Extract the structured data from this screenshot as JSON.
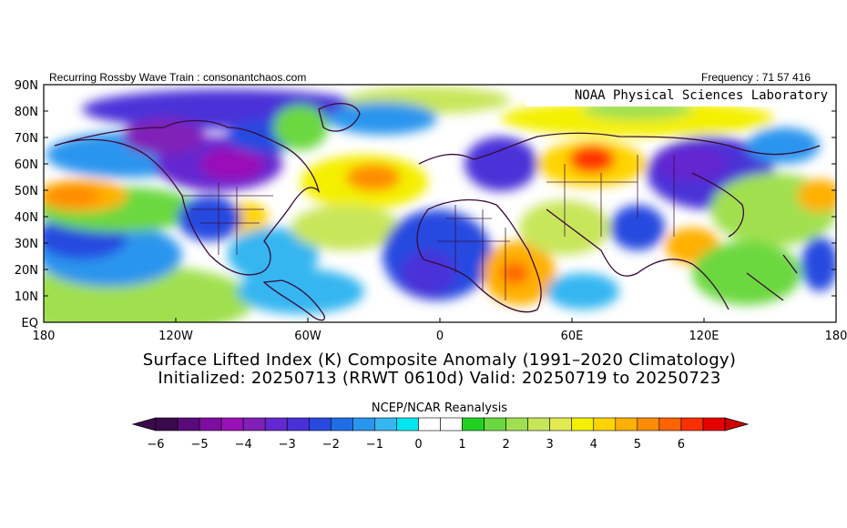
{
  "header": {
    "left_text": "Recurring Rossby Wave Train : consonantchaos.com",
    "right_text": "Frequency : 71 57 416"
  },
  "credit": "NOAA Physical Sciences Laboratory",
  "title_line1": "Surface Lifted Index (K) Composite Anomaly (1991–2020 Climatology)",
  "title_line2": "Initialized: 20250713 (RRWT 0610d) Valid: 20250719 to 20250723",
  "colorbar": {
    "title": "NCEP/NCAR Reanalysis",
    "labels": [
      "−6",
      "−5",
      "−4",
      "−3",
      "−2",
      "−1",
      "0",
      "1",
      "2",
      "3",
      "4",
      "5",
      "6"
    ],
    "colors": [
      "#3a0a4a",
      "#5a0a7a",
      "#7d0d9e",
      "#9a10b8",
      "#8020b8",
      "#6428d0",
      "#4830d8",
      "#2848e0",
      "#1f6ee6",
      "#2a95ee",
      "#35b6f0",
      "#00e6f0",
      "#ffffff",
      "#ffffff",
      "#22d022",
      "#6cd840",
      "#a0e050",
      "#c8e65a",
      "#e3ea50",
      "#f4f000",
      "#ffd400",
      "#ffb000",
      "#ff8c00",
      "#ff6400",
      "#ff3000",
      "#e80000"
    ]
  },
  "map": {
    "lat_labels": [
      "90N",
      "80N",
      "70N",
      "60N",
      "50N",
      "40N",
      "30N",
      "20N",
      "10N",
      "EQ"
    ],
    "lon_labels": [
      "180",
      "120W",
      "60W",
      "0",
      "60E",
      "120E",
      "180"
    ]
  }
}
